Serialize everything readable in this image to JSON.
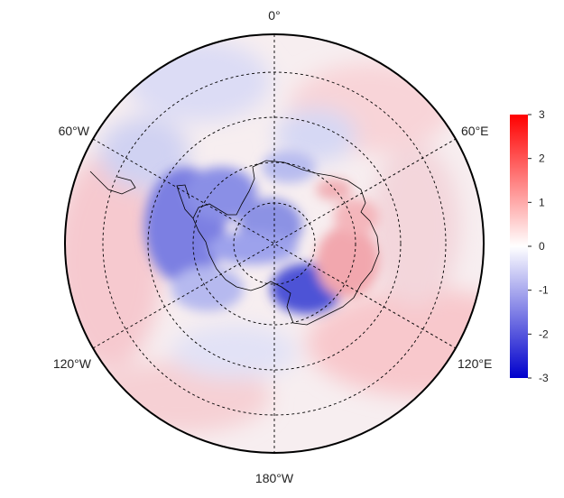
{
  "map": {
    "projection": "south-polar-stereographic",
    "longitude_labels": [
      {
        "id": "lon-0",
        "text": "0°",
        "lon": 0
      },
      {
        "id": "lon-60e",
        "text": "60°E",
        "lon": 60
      },
      {
        "id": "lon-120e",
        "text": "120°E",
        "lon": 120
      },
      {
        "id": "lon-180w",
        "text": "180°W",
        "lon": 180
      },
      {
        "id": "lon-120w",
        "text": "120°W",
        "lon": -120
      },
      {
        "id": "lon-60w",
        "text": "60°W",
        "lon": -60
      }
    ],
    "latitude_circles": 4,
    "meridian_spacing_deg": 30,
    "colorbar": {
      "min": -3,
      "max": 3,
      "ticks": [
        "3",
        "2",
        "1",
        "0",
        "-1",
        "-2",
        "-3"
      ],
      "colors": {
        "low": "#0000cc",
        "mid": "#ffffff",
        "high": "#ff0000"
      }
    },
    "colors": {
      "frame": "#000000",
      "graticule": "#000000",
      "coast": "#000000"
    }
  }
}
